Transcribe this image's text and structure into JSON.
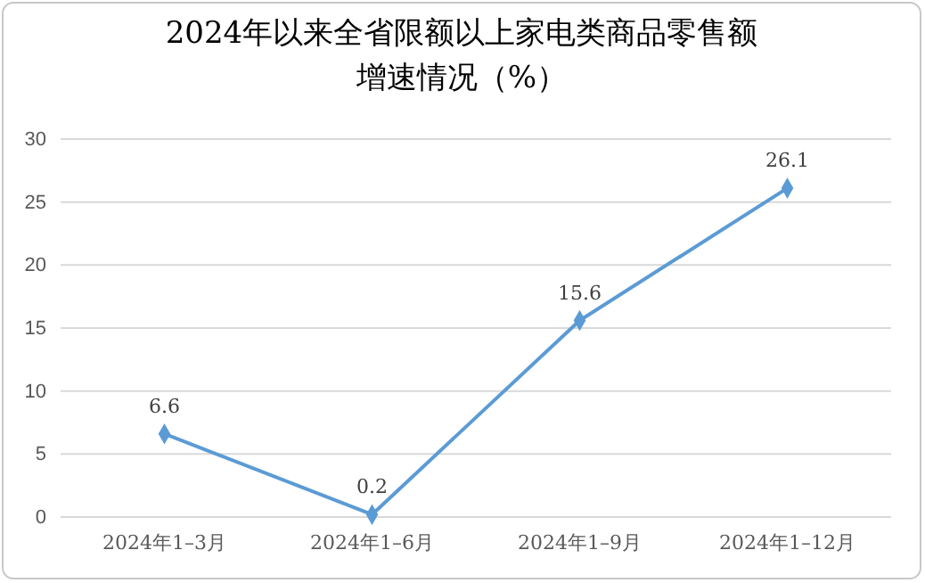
{
  "chart_data": {
    "type": "line",
    "title": "2024年以来全省限额以上家电类商品零售额增速情况（%）",
    "categories": [
      "2024年1–3月",
      "2024年1–6月",
      "2024年1–9月",
      "2024年1–12月"
    ],
    "series": [
      {
        "color": "#5b9bd5",
        "values": [
          6.6,
          0.2,
          15.6,
          26.1
        ]
      }
    ],
    "ylim": [
      0,
      30
    ],
    "yticks": [
      0,
      5,
      10,
      15,
      20,
      25,
      30
    ],
    "grid": "y",
    "marker": "diamond",
    "data_labels": true
  }
}
